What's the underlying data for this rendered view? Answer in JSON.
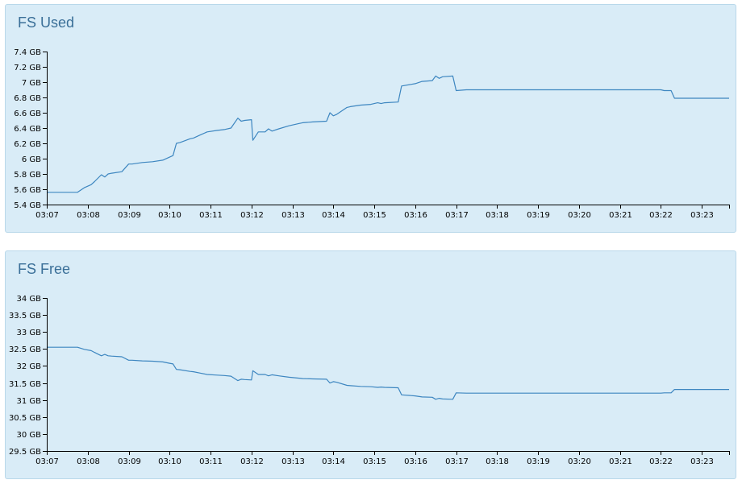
{
  "chart_data": [
    {
      "type": "line",
      "title": "FS Used",
      "xlabel": "",
      "ylabel": "",
      "x_ticks": [
        "03:07",
        "03:08",
        "03:09",
        "03:10",
        "03:11",
        "03:12",
        "03:13",
        "03:14",
        "03:15",
        "03:16",
        "03:17",
        "03:18",
        "03:19",
        "03:20",
        "03:21",
        "03:22",
        "03:23"
      ],
      "y_ticks": [
        "5.4 GB",
        "5.6 GB",
        "5.8 GB",
        "6 GB",
        "6.2 GB",
        "6.4 GB",
        "6.6 GB",
        "6.8 GB",
        "7 GB",
        "7.2 GB",
        "7.4 GB"
      ],
      "y_tick_values": [
        5.4,
        5.6,
        5.8,
        6.0,
        6.2,
        6.4,
        6.6,
        6.8,
        7.0,
        7.2,
        7.4
      ],
      "ylim": [
        5.4,
        7.4
      ],
      "xlim": [
        "03:07",
        "03:23:40"
      ],
      "grid": false,
      "color": "#3d86c0",
      "series": [
        {
          "x": [
            "03:06:50",
            "03:07:45",
            "03:07:55",
            "03:08:05",
            "03:08:10",
            "03:08:20",
            "03:08:25",
            "03:08:30",
            "03:08:35",
            "03:08:50",
            "03:09:00",
            "03:09:05",
            "03:09:20",
            "03:09:35",
            "03:09:50",
            "03:10:00",
            "03:10:05",
            "03:10:10",
            "03:10:15",
            "03:10:30",
            "03:10:35",
            "03:10:45",
            "03:10:55",
            "03:11:10",
            "03:11:20",
            "03:11:30",
            "03:11:40",
            "03:11:45",
            "03:11:50",
            "03:12:00",
            "03:12:02",
            "03:12:10",
            "03:12:20",
            "03:12:25",
            "03:12:30",
            "03:12:40",
            "03:12:55",
            "03:13:10",
            "03:13:15",
            "03:13:30",
            "03:13:50",
            "03:13:55",
            "03:14:00",
            "03:14:05",
            "03:14:20",
            "03:14:25",
            "03:14:40",
            "03:14:55",
            "03:15:05",
            "03:15:10",
            "03:15:15",
            "03:15:35",
            "03:15:40",
            "03:16:00",
            "03:16:10",
            "03:16:25",
            "03:16:30",
            "03:16:35",
            "03:16:40",
            "03:16:55",
            "03:17:00",
            "03:17:15",
            "03:18:00",
            "03:22:00",
            "03:22:05",
            "03:22:15",
            "03:22:20",
            "03:23:40"
          ],
          "values": [
            5.56,
            5.56,
            5.62,
            5.66,
            5.7,
            5.79,
            5.76,
            5.8,
            5.81,
            5.83,
            5.93,
            5.93,
            5.95,
            5.96,
            5.98,
            6.02,
            6.04,
            6.2,
            6.21,
            6.26,
            6.27,
            6.31,
            6.35,
            6.37,
            6.38,
            6.4,
            6.53,
            6.49,
            6.5,
            6.51,
            6.24,
            6.35,
            6.35,
            6.39,
            6.36,
            6.39,
            6.43,
            6.46,
            6.47,
            6.48,
            6.49,
            6.6,
            6.56,
            6.58,
            6.67,
            6.68,
            6.7,
            6.71,
            6.73,
            6.72,
            6.73,
            6.74,
            6.95,
            6.98,
            7.01,
            7.02,
            7.08,
            7.05,
            7.07,
            7.08,
            6.89,
            6.9,
            6.9,
            6.9,
            6.89,
            6.89,
            6.79,
            6.79
          ]
        }
      ]
    },
    {
      "type": "line",
      "title": "FS Free",
      "xlabel": "",
      "ylabel": "",
      "x_ticks": [
        "03:07",
        "03:08",
        "03:09",
        "03:10",
        "03:11",
        "03:12",
        "03:13",
        "03:14",
        "03:15",
        "03:16",
        "03:17",
        "03:18",
        "03:19",
        "03:20",
        "03:21",
        "03:22",
        "03:23"
      ],
      "y_ticks": [
        "29.5 GB",
        "30 GB",
        "30.5 GB",
        "31 GB",
        "31.5 GB",
        "32 GB",
        "32.5 GB",
        "33 GB",
        "33.5 GB",
        "34 GB"
      ],
      "y_tick_values": [
        29.5,
        30,
        30.5,
        31,
        31.5,
        32,
        32.5,
        33,
        33.5,
        34
      ],
      "ylim": [
        29.5,
        34
      ],
      "xlim": [
        "03:07",
        "03:23:40"
      ],
      "grid": false,
      "color": "#3d86c0",
      "series": [
        {
          "x": [
            "03:06:50",
            "03:07:45",
            "03:07:55",
            "03:08:05",
            "03:08:10",
            "03:08:20",
            "03:08:25",
            "03:08:30",
            "03:08:35",
            "03:08:50",
            "03:09:00",
            "03:09:05",
            "03:09:20",
            "03:09:35",
            "03:09:50",
            "03:10:00",
            "03:10:05",
            "03:10:10",
            "03:10:15",
            "03:10:30",
            "03:10:35",
            "03:10:45",
            "03:10:55",
            "03:11:10",
            "03:11:20",
            "03:11:30",
            "03:11:40",
            "03:11:45",
            "03:11:50",
            "03:12:00",
            "03:12:02",
            "03:12:10",
            "03:12:20",
            "03:12:25",
            "03:12:30",
            "03:12:40",
            "03:12:55",
            "03:13:10",
            "03:13:15",
            "03:13:30",
            "03:13:50",
            "03:13:55",
            "03:14:00",
            "03:14:05",
            "03:14:20",
            "03:14:25",
            "03:14:40",
            "03:14:55",
            "03:15:05",
            "03:15:10",
            "03:15:15",
            "03:15:35",
            "03:15:40",
            "03:16:00",
            "03:16:10",
            "03:16:25",
            "03:16:30",
            "03:16:35",
            "03:16:40",
            "03:16:55",
            "03:17:00",
            "03:17:15",
            "03:18:00",
            "03:22:00",
            "03:22:05",
            "03:22:15",
            "03:22:20",
            "03:23:40"
          ],
          "values": [
            32.55,
            32.55,
            32.49,
            32.45,
            32.4,
            32.3,
            32.34,
            32.3,
            32.29,
            32.27,
            32.17,
            32.17,
            32.15,
            32.14,
            32.12,
            32.08,
            32.06,
            31.9,
            31.89,
            31.84,
            31.83,
            31.79,
            31.75,
            31.73,
            31.72,
            31.7,
            31.57,
            31.61,
            31.6,
            31.59,
            31.86,
            31.75,
            31.75,
            31.71,
            31.74,
            31.71,
            31.67,
            31.64,
            31.63,
            31.62,
            31.61,
            31.5,
            31.54,
            31.52,
            31.43,
            31.42,
            31.4,
            31.39,
            31.37,
            31.38,
            31.37,
            31.36,
            31.15,
            31.12,
            31.09,
            31.08,
            31.02,
            31.05,
            31.03,
            31.02,
            31.21,
            31.2,
            31.2,
            31.2,
            31.21,
            31.21,
            31.31,
            31.31
          ]
        }
      ]
    }
  ]
}
